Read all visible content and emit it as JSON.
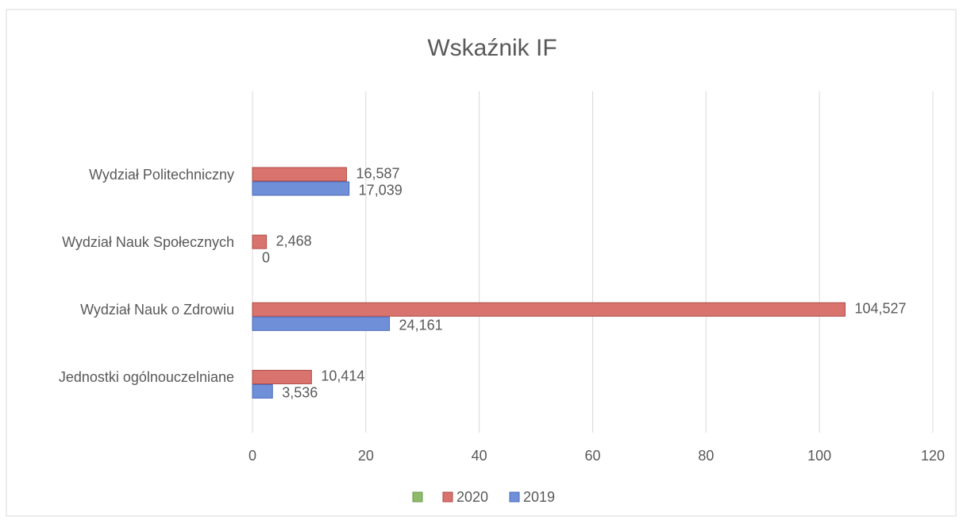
{
  "chart_data": {
    "type": "bar",
    "orientation": "horizontal",
    "title": "Wskaźnik IF",
    "categories": [
      "Wydział Politechniczny",
      "Wydział Nauk Społecznych",
      "Wydział Nauk o Zdrowiu",
      "Jednostki ogólnouczelniane"
    ],
    "series": [
      {
        "name": "2020",
        "color": "#d9736e",
        "values": [
          16.587,
          2.468,
          104.527,
          10.414
        ],
        "value_labels": [
          "16,587",
          "2,468",
          "104,527",
          "10,414"
        ]
      },
      {
        "name": "2019",
        "color": "#6f8fd9",
        "values": [
          17.039,
          0,
          24.161,
          3.536
        ],
        "value_labels": [
          "17,039",
          "0",
          "24,161",
          "3,536"
        ]
      }
    ],
    "xlim": [
      0,
      120
    ],
    "xticks": [
      0,
      20,
      40,
      60,
      80,
      100,
      120
    ],
    "grid": true,
    "legend": "bottom"
  }
}
